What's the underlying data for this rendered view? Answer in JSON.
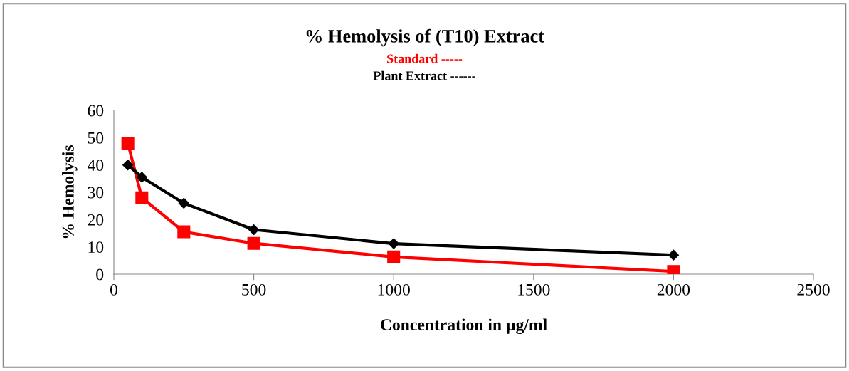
{
  "chart_data": {
    "type": "line",
    "title": "% Hemolysis of (T10) Extract",
    "xlabel": "Concentration in µg/ml",
    "ylabel": "% Hemolysis",
    "x": [
      50,
      100,
      250,
      500,
      1000,
      2000
    ],
    "series": [
      {
        "name": "Standard -----",
        "color": "#ff0000",
        "marker": "square",
        "values": [
          48,
          28,
          15.5,
          11.3,
          6.3,
          1
        ]
      },
      {
        "name": "Plant Extract ------",
        "color": "#000000",
        "marker": "diamond",
        "values": [
          40,
          35.5,
          26,
          16.3,
          11.2,
          7
        ]
      }
    ],
    "xlim": [
      0,
      2500
    ],
    "xticks": [
      0,
      500,
      1000,
      1500,
      2000,
      2500
    ],
    "ylim": [
      0,
      60
    ],
    "yticks": [
      0,
      10,
      20,
      30,
      40,
      50,
      60
    ],
    "grid": false,
    "legend": "top",
    "line_style": "solid"
  }
}
